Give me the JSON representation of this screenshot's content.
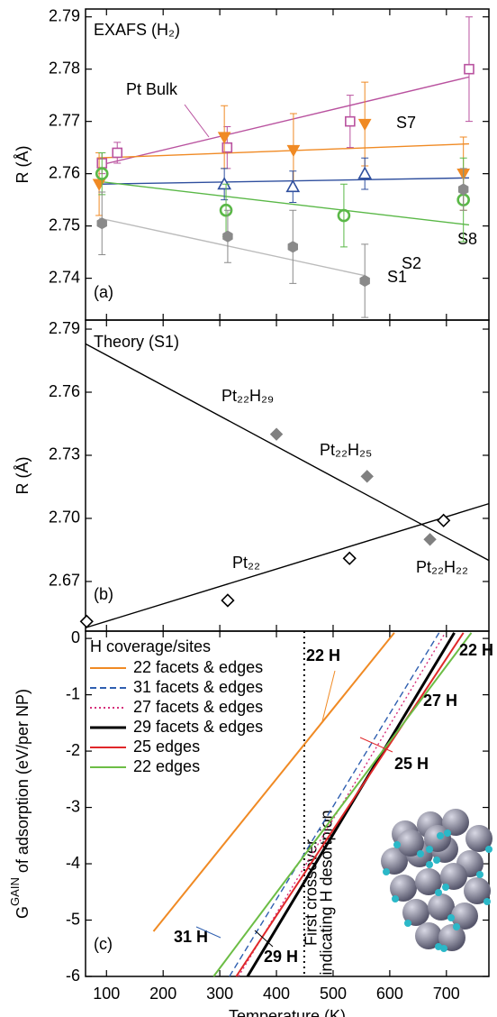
{
  "chart_data": [
    {
      "type": "scatter",
      "panel_label": "(a)",
      "title": "EXAFS (H₂)",
      "y_label": "R (Å)",
      "xlim": [
        63,
        775
      ],
      "ylim": [
        2.732,
        2.7915
      ],
      "yticks": [
        2.74,
        2.75,
        2.76,
        2.77,
        2.78,
        2.79
      ],
      "series": [
        {
          "name": "Pt Bulk",
          "color": "#b9529f",
          "marker": "square-open",
          "x": [
            92,
            119,
            313,
            530,
            740
          ],
          "values": [
            2.762,
            2.764,
            2.765,
            2.77,
            2.78
          ],
          "errors": [
            0.002,
            0.002,
            0.004,
            0.005,
            0.01
          ],
          "fit_x": [
            83,
            740
          ],
          "fit_y": [
            2.7615,
            2.7785
          ]
        },
        {
          "name": "S7",
          "color": "#f08a24",
          "marker": "tri-down-filled",
          "x": [
            87,
            308,
            430,
            556,
            730
          ],
          "values": [
            2.758,
            2.767,
            2.7645,
            2.7695,
            2.76
          ],
          "errors": [
            0.006,
            0.006,
            0.007,
            0.008,
            0.007
          ],
          "fit_x": [
            83,
            740
          ],
          "fit_y": [
            2.763,
            2.7657
          ]
        },
        {
          "name": "S8",
          "color": "#2f4f9e",
          "marker": "tri-up-open",
          "x": [
            308,
            429,
            556
          ],
          "values": [
            2.758,
            2.7575,
            2.76
          ],
          "errors": [
            0.003,
            0.003,
            0.003
          ],
          "fit_x": [
            87,
            740
          ],
          "fit_y": [
            2.758,
            2.7592
          ]
        },
        {
          "name": "S2",
          "color": "#5ab847",
          "marker": "circle-open",
          "x": [
            92,
            311,
            519,
            730
          ],
          "values": [
            2.76,
            2.753,
            2.752,
            2.755
          ],
          "errors": [
            0.004,
            0.005,
            0.006,
            0.008
          ],
          "fit_x": [
            87,
            740
          ],
          "fit_y": [
            2.7585,
            2.7502
          ]
        },
        {
          "name": "S1",
          "color": "#8a8a8a",
          "marker": "hex-filled",
          "x": [
            92,
            314,
            429,
            556,
            730
          ],
          "values": [
            2.7505,
            2.748,
            2.746,
            2.7395,
            2.757
          ],
          "errors": [
            0.006,
            0.005,
            0.007,
            0.007,
            0.004
          ],
          "fit_x": [
            87,
            556
          ],
          "fit_y": [
            2.7515,
            2.7405
          ]
        }
      ]
    },
    {
      "type": "scatter",
      "panel_label": "(b)",
      "title": "Theory (S1)",
      "y_label": "R (Å)",
      "xlim": [
        63,
        775
      ],
      "ylim": [
        2.6464,
        2.7943
      ],
      "yticks": [
        2.67,
        {
          "value": 2.7,
          "label": "2.70"
        },
        2.73,
        2.76,
        2.79
      ],
      "series": [
        {
          "color": "#808080",
          "marker": "diamond-filled",
          "x": [
            400,
            560,
            671
          ],
          "values": [
            2.74,
            2.72,
            2.69
          ],
          "point_labels": [
            "Pt₂₂H₂₉",
            "Pt₂₂H₂₅",
            "Pt₂₂H₂₂"
          ],
          "fit_x": [
            63,
            775
          ],
          "fit_y": [
            2.783,
            2.68
          ]
        },
        {
          "name": "Pt₂₂",
          "color": "#000000",
          "marker": "diamond-open",
          "x": [
            65,
            314,
            529,
            695
          ],
          "values": [
            2.651,
            2.661,
            2.681,
            2.699
          ],
          "fit_x": [
            63,
            775
          ],
          "fit_y": [
            2.648,
            2.707
          ]
        }
      ]
    },
    {
      "type": "line",
      "panel_label": "(c)",
      "y_label": "G",
      "y_label_sup": "GAIN",
      "y_label_rest": " of adsorption (eV/per NP)",
      "x_label": "Temperature (K)",
      "xlim": [
        63,
        775
      ],
      "xticks": [
        100,
        200,
        300,
        400,
        500,
        600,
        700
      ],
      "ylim": [
        -6,
        0.13
      ],
      "yticks": [
        -6,
        -5,
        -4,
        -3,
        -2,
        -1,
        0
      ],
      "legend_title": "H coverage/sites",
      "series": [
        {
          "name": "22  facets & edges",
          "color": "#f08a24",
          "dash": "solid",
          "x": [
            183,
            608
          ],
          "values": [
            -5.2,
            0.1
          ]
        },
        {
          "name": "31  facets & edges",
          "color": "#2f5fb0",
          "dash": "dashed",
          "x": [
            317,
            687
          ],
          "values": [
            -6,
            0.1
          ]
        },
        {
          "name": "27  facets & edges",
          "color": "#d6307a",
          "dash": "dotted",
          "x": [
            333,
            698
          ],
          "values": [
            -6,
            0.1
          ]
        },
        {
          "name": "29  facets & edges",
          "color": "#000000",
          "dash": "solid",
          "x": [
            349,
            714
          ],
          "values": [
            -6,
            0.1
          ]
        },
        {
          "name": "25  edges",
          "color": "#e0282a",
          "dash": "solid",
          "x": [
            329,
            730
          ],
          "values": [
            -6,
            0.1
          ]
        },
        {
          "name": "22  edges",
          "color": "#6cbd45",
          "dash": "solid",
          "x": [
            289,
            744
          ],
          "values": [
            -6,
            0.1
          ]
        }
      ],
      "annotations": [
        {
          "text": "22 H",
          "color": "#f08a24"
        },
        {
          "text": "27 H",
          "color": "#e0207a"
        },
        {
          "text": "22 H",
          "color": "#6cbd45"
        },
        {
          "text": "25 H",
          "color": "#e0282a"
        },
        {
          "text": "31 H",
          "color": "#2f5fb0"
        },
        {
          "text": "29 H",
          "color": "#000000"
        }
      ],
      "vline": {
        "x": 449,
        "label": [
          "First crossover",
          "indicating H desortpion"
        ]
      }
    }
  ]
}
